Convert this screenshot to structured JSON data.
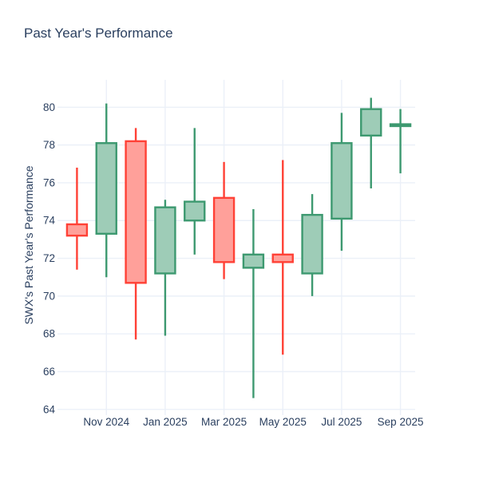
{
  "figure": {
    "title": "Past Year's Performance"
  },
  "colors": {
    "background": "#ffffff",
    "text": "#2a3f5f",
    "grid": "#EBF0F8",
    "tick": "#EBF0F8",
    "increasing_line": "#3D9970",
    "increasing_fill": "#9ECCB7",
    "decreasing_line": "#FF4136",
    "decreasing_fill": "#FFA09A"
  },
  "chart_data": {
    "type": "candlestick",
    "title": "Past Year's Performance",
    "xlabel": "",
    "ylabel": "SWX's Past Year's Performance",
    "grid": true,
    "legend": "none",
    "ylim": [
      63.95,
      81.45
    ],
    "y_ticks": [
      64,
      66,
      68,
      70,
      72,
      74,
      76,
      78,
      80
    ],
    "x_ticks": [
      {
        "index": 1,
        "label": "Nov 2024"
      },
      {
        "index": 3,
        "label": "Jan 2025"
      },
      {
        "index": 5,
        "label": "Mar 2025"
      },
      {
        "index": 7,
        "label": "May 2025"
      },
      {
        "index": 9,
        "label": "Jul 2025"
      },
      {
        "index": 11,
        "label": "Sep 2025"
      }
    ],
    "ohlc": [
      {
        "month": "Oct 2024",
        "open": 73.8,
        "high": 76.8,
        "low": 71.4,
        "close": 73.2
      },
      {
        "month": "Nov 2024",
        "open": 73.3,
        "high": 80.2,
        "low": 71.0,
        "close": 78.1
      },
      {
        "month": "Dec 2024",
        "open": 78.2,
        "high": 78.9,
        "low": 67.7,
        "close": 70.7
      },
      {
        "month": "Jan 2025",
        "open": 71.2,
        "high": 75.1,
        "low": 67.9,
        "close": 74.7
      },
      {
        "month": "Feb 2025",
        "open": 74.0,
        "high": 78.9,
        "low": 72.2,
        "close": 75.0
      },
      {
        "month": "Mar 2025",
        "open": 75.2,
        "high": 77.1,
        "low": 70.9,
        "close": 71.8
      },
      {
        "month": "Apr 2025",
        "open": 71.5,
        "high": 74.6,
        "low": 64.6,
        "close": 72.2
      },
      {
        "month": "May 2025",
        "open": 72.2,
        "high": 77.2,
        "low": 66.9,
        "close": 71.8
      },
      {
        "month": "Jun 2025",
        "open": 71.2,
        "high": 75.4,
        "low": 70.0,
        "close": 74.3
      },
      {
        "month": "Jul 2025",
        "open": 74.1,
        "high": 79.7,
        "low": 72.4,
        "close": 78.1
      },
      {
        "month": "Aug 2025",
        "open": 78.5,
        "high": 80.5,
        "low": 75.7,
        "close": 79.9
      },
      {
        "month": "Sep 2025",
        "open": 79.0,
        "high": 79.9,
        "low": 76.5,
        "close": 79.1
      }
    ]
  }
}
